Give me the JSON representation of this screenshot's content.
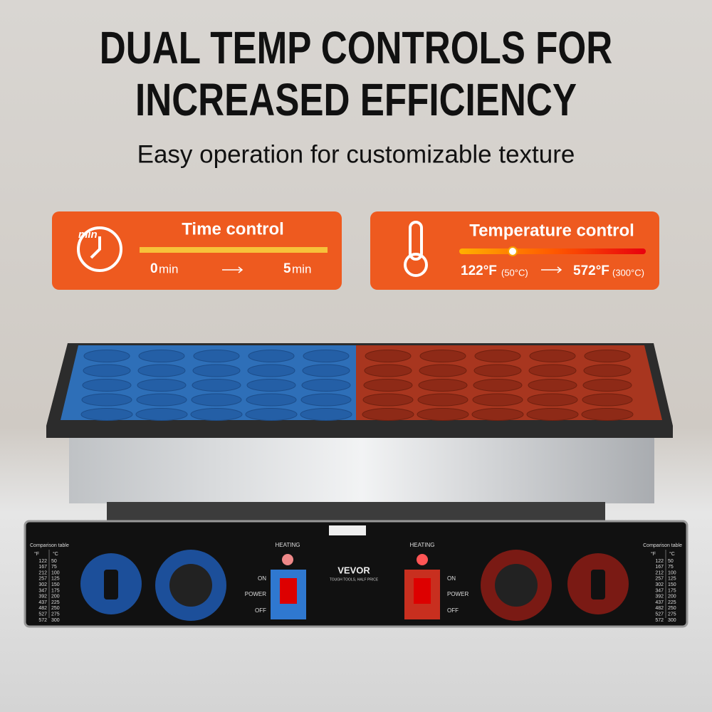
{
  "header": {
    "title_lines": [
      "DUAL TEMP CONTROLS FOR",
      "INCREASED EFFICIENCY"
    ],
    "subtitle": "Easy operation for customizable texture"
  },
  "time_card": {
    "icon_label": "min",
    "title": "Time control",
    "start_value": "0",
    "start_unit": "min",
    "end_value": "5",
    "end_unit": "min"
  },
  "temp_card": {
    "title": "Temperature control",
    "start_f": "122°F",
    "start_c": "(50°C)",
    "end_f": "572°F",
    "end_c": "(300°C)"
  },
  "machine": {
    "brand": "VEVOR",
    "tagline": "TOUGH TOOLS, HALF PRICE",
    "left_panel": {
      "heating": "HEATING",
      "on": "ON",
      "power": "POWER",
      "off": "OFF"
    },
    "right_panel": {
      "heating": "HEATING",
      "on": "ON",
      "power": "POWER",
      "off": "OFF"
    },
    "comparison_table": {
      "title": "Comparison table",
      "headers": [
        "°F",
        "°C"
      ],
      "rows": [
        [
          122,
          50
        ],
        [
          167,
          75
        ],
        [
          212,
          100
        ],
        [
          257,
          125
        ],
        [
          302,
          150
        ],
        [
          347,
          175
        ],
        [
          392,
          200
        ],
        [
          437,
          225
        ],
        [
          482,
          250
        ],
        [
          527,
          275
        ],
        [
          572,
          300
        ]
      ]
    }
  }
}
